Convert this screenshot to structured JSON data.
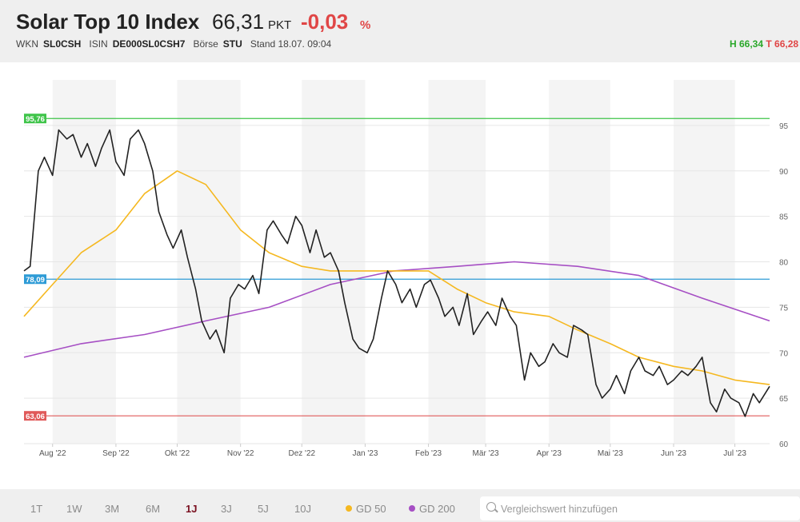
{
  "header": {
    "title": "Solar Top 10 Index",
    "price": "66,31",
    "unit": "PKT",
    "change": "-0,03",
    "change_unit": "%",
    "wkn_label": "WKN",
    "wkn": "SL0CSH",
    "isin_label": "ISIN",
    "isin": "DE000SL0CSH7",
    "boerse_label": "Börse",
    "boerse": "STU",
    "stand": "Stand 18.07. 09:04",
    "high": "H 66,34",
    "low": "T 66,28"
  },
  "colors": {
    "price_line": "#222222",
    "gd50": "#f5b820",
    "gd200": "#a64fc4",
    "line_high": "#3fc44a",
    "line_mid": "#2e9bd6",
    "line_low": "#e05a5a",
    "negative": "#e04646"
  },
  "chart_data": {
    "type": "line",
    "x_range": [
      "2022-07-18",
      "2023-07-18"
    ],
    "ylim": [
      60,
      100
    ],
    "y_ticks": [
      60,
      65,
      70,
      75,
      80,
      85,
      90,
      95
    ],
    "x_tick_labels": [
      "Aug '22",
      "Sep '22",
      "Okt '22",
      "Nov '22",
      "Dez '22",
      "Jan '23",
      "Feb '23",
      "Mär '23",
      "Apr '23",
      "Mai '23",
      "Jun '23",
      "Jul '23"
    ],
    "grid": true,
    "horizontal_lines": [
      {
        "label": "95,76",
        "value": 95.76,
        "color": "#3fc44a"
      },
      {
        "label": "78,09",
        "value": 78.09,
        "color": "#2e9bd6"
      },
      {
        "label": "63,06",
        "value": 63.06,
        "color": "#e05a5a"
      }
    ],
    "series": [
      {
        "name": "Solar Top 10 Index",
        "x": [
          "2022-07-18",
          "2022-07-21",
          "2022-07-25",
          "2022-07-28",
          "2022-08-01",
          "2022-08-04",
          "2022-08-08",
          "2022-08-11",
          "2022-08-15",
          "2022-08-18",
          "2022-08-22",
          "2022-08-25",
          "2022-08-29",
          "2022-09-01",
          "2022-09-05",
          "2022-09-08",
          "2022-09-12",
          "2022-09-15",
          "2022-09-19",
          "2022-09-22",
          "2022-09-26",
          "2022-09-29",
          "2022-10-03",
          "2022-10-06",
          "2022-10-10",
          "2022-10-13",
          "2022-10-17",
          "2022-10-20",
          "2022-10-24",
          "2022-10-27",
          "2022-10-31",
          "2022-11-03",
          "2022-11-07",
          "2022-11-10",
          "2022-11-14",
          "2022-11-17",
          "2022-11-21",
          "2022-11-24",
          "2022-11-28",
          "2022-12-01",
          "2022-12-05",
          "2022-12-08",
          "2022-12-12",
          "2022-12-15",
          "2022-12-19",
          "2022-12-22",
          "2022-12-26",
          "2022-12-29",
          "2023-01-02",
          "2023-01-05",
          "2023-01-09",
          "2023-01-12",
          "2023-01-16",
          "2023-01-19",
          "2023-01-23",
          "2023-01-26",
          "2023-01-30",
          "2023-02-02",
          "2023-02-06",
          "2023-02-09",
          "2023-02-13",
          "2023-02-16",
          "2023-02-20",
          "2023-02-23",
          "2023-02-27",
          "2023-03-02",
          "2023-03-06",
          "2023-03-09",
          "2023-03-13",
          "2023-03-16",
          "2023-03-20",
          "2023-03-23",
          "2023-03-27",
          "2023-03-30",
          "2023-04-03",
          "2023-04-06",
          "2023-04-10",
          "2023-04-13",
          "2023-04-17",
          "2023-04-20",
          "2023-04-24",
          "2023-04-27",
          "2023-05-01",
          "2023-05-04",
          "2023-05-08",
          "2023-05-11",
          "2023-05-15",
          "2023-05-18",
          "2023-05-22",
          "2023-05-25",
          "2023-05-29",
          "2023-06-01",
          "2023-06-05",
          "2023-06-08",
          "2023-06-12",
          "2023-06-15",
          "2023-06-19",
          "2023-06-22",
          "2023-06-26",
          "2023-06-29",
          "2023-07-03",
          "2023-07-06",
          "2023-07-10",
          "2023-07-13",
          "2023-07-18"
        ],
        "values": [
          79.0,
          79.5,
          90.0,
          91.5,
          89.5,
          94.5,
          93.5,
          94.0,
          91.5,
          93.0,
          90.5,
          92.5,
          94.5,
          91.0,
          89.5,
          93.5,
          94.5,
          93.0,
          90.0,
          85.5,
          83.0,
          81.5,
          83.5,
          80.5,
          77.0,
          73.5,
          71.5,
          72.5,
          70.0,
          76.0,
          77.5,
          77.0,
          78.5,
          76.5,
          83.5,
          84.5,
          83.0,
          82.0,
          85.0,
          84.0,
          81.0,
          83.5,
          80.5,
          81.0,
          79.0,
          75.5,
          71.5,
          70.5,
          70.0,
          71.5,
          76.0,
          79.0,
          77.5,
          75.5,
          77.0,
          75.0,
          77.5,
          78.0,
          76.0,
          74.0,
          75.0,
          73.0,
          76.5,
          72.0,
          73.5,
          74.5,
          73.0,
          76.0,
          74.0,
          73.0,
          67.0,
          70.0,
          68.5,
          69.0,
          71.0,
          70.0,
          69.5,
          73.0,
          72.5,
          72.0,
          66.5,
          65.0,
          66.0,
          67.5,
          65.5,
          68.0,
          69.5,
          68.0,
          67.5,
          68.5,
          66.5,
          67.0,
          68.0,
          67.5,
          68.5,
          69.5,
          64.5,
          63.5,
          66.0,
          65.0,
          64.5,
          63.0,
          65.5,
          64.5,
          66.3
        ]
      },
      {
        "name": "GD 50",
        "x": [
          "2022-07-18",
          "2022-08-01",
          "2022-08-15",
          "2022-09-01",
          "2022-09-15",
          "2022-10-01",
          "2022-10-15",
          "2022-11-01",
          "2022-11-15",
          "2022-12-01",
          "2022-12-15",
          "2023-01-01",
          "2023-01-15",
          "2023-02-01",
          "2023-02-15",
          "2023-03-01",
          "2023-03-15",
          "2023-04-01",
          "2023-04-15",
          "2023-05-01",
          "2023-05-15",
          "2023-06-01",
          "2023-06-15",
          "2023-07-01",
          "2023-07-18"
        ],
        "values": [
          74.0,
          77.5,
          81.0,
          83.5,
          87.5,
          90.0,
          88.5,
          83.5,
          81.0,
          79.5,
          79.0,
          79.0,
          79.0,
          79.0,
          77.0,
          75.5,
          74.5,
          74.0,
          72.5,
          71.0,
          69.5,
          68.5,
          68.0,
          67.0,
          66.5
        ]
      },
      {
        "name": "GD 200",
        "x": [
          "2022-07-18",
          "2022-08-15",
          "2022-09-15",
          "2022-10-15",
          "2022-11-15",
          "2022-12-15",
          "2023-01-15",
          "2023-02-15",
          "2023-03-15",
          "2023-04-15",
          "2023-05-15",
          "2023-06-15",
          "2023-07-18"
        ],
        "values": [
          69.5,
          71.0,
          72.0,
          73.5,
          75.0,
          77.5,
          79.0,
          79.5,
          80.0,
          79.5,
          78.5,
          76.0,
          73.5
        ]
      }
    ]
  },
  "footer": {
    "ranges": [
      "1T",
      "1W",
      "3M",
      "6M",
      "1J",
      "3J",
      "5J",
      "10J"
    ],
    "active_range": "1J",
    "legend_gd50": "GD 50",
    "legend_gd200": "GD 200",
    "compare_placeholder": "Vergleichswert hinzufügen"
  }
}
